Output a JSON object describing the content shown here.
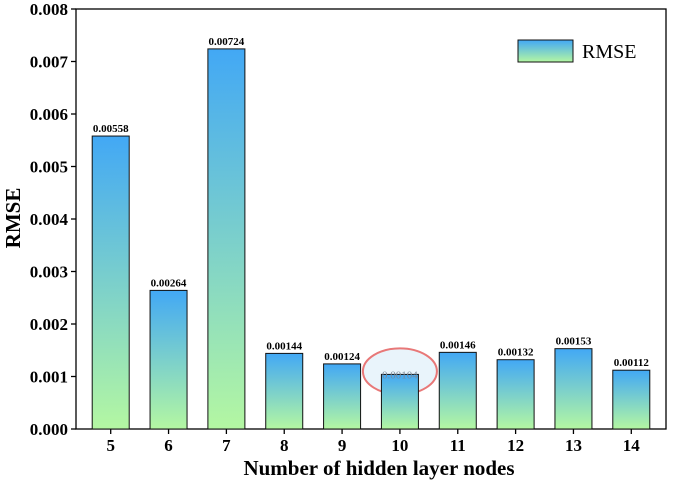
{
  "chart_data": {
    "type": "bar",
    "title": "",
    "xlabel": "Number of hidden layer nodes",
    "ylabel": "RMSE",
    "categories": [
      "5",
      "6",
      "7",
      "8",
      "9",
      "10",
      "11",
      "12",
      "13",
      "14"
    ],
    "series": [
      {
        "name": "RMSE",
        "values": [
          0.00558,
          0.00264,
          0.00724,
          0.00144,
          0.00124,
          0.00104,
          0.00146,
          0.00132,
          0.00153,
          0.00112
        ],
        "value_labels": [
          "0.00558",
          "0.00264",
          "0.00724",
          "0.00144",
          "0.00124",
          "0.00104",
          "0.00146",
          "0.00132",
          "0.00153",
          "0.00112"
        ]
      }
    ],
    "ylim": [
      0,
      0.008
    ],
    "yticks": [
      "0.000",
      "0.001",
      "0.002",
      "0.003",
      "0.004",
      "0.005",
      "0.006",
      "0.007",
      "0.008"
    ],
    "grid": false,
    "legend_position": "top-right",
    "highlighted_category": "10",
    "colors": {
      "bar_top": "#42a8f5",
      "bar_bottom": "#b4f7a2",
      "highlight_ring": "#e87878",
      "highlight_fill": "#e9f4fb"
    }
  }
}
